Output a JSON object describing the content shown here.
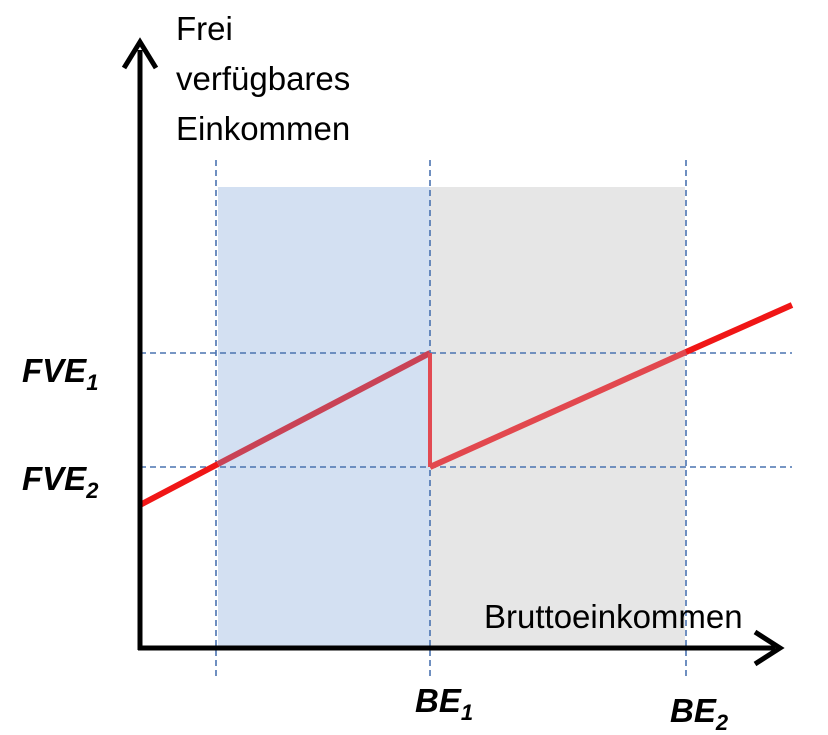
{
  "y_axis_label": [
    "Frei",
    "verfügbares",
    "Einkommen"
  ],
  "x_axis_label": "Bruttoeinkommen",
  "y_markers": [
    {
      "main": "FVE",
      "sub": "1"
    },
    {
      "main": "FVE",
      "sub": "2"
    }
  ],
  "x_markers": [
    {
      "main": "BE",
      "sub": "1"
    },
    {
      "main": "BE",
      "sub": "2"
    }
  ]
}
